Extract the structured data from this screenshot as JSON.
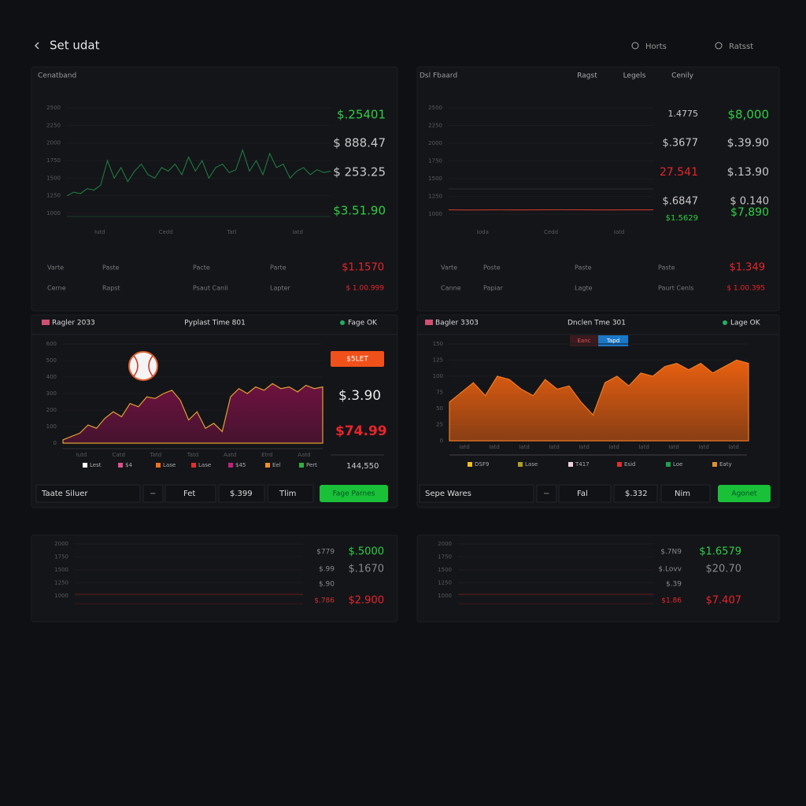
{
  "header": {
    "back": "Set udat",
    "search": "Horts",
    "reset": "Ratsst"
  },
  "panels": [
    {
      "title": "Cenatband",
      "chart": {
        "type": "line",
        "color": "#1f7a3f",
        "ylim": [
          1000,
          2500
        ],
        "yticks": [
          1000,
          1250,
          1500,
          1750,
          2000,
          2250,
          2500
        ],
        "x_labels": [
          "Iutd",
          "Cedd",
          "Tatl",
          "Iatd"
        ],
        "values": [
          1250,
          1300,
          1280,
          1350,
          1330,
          1400,
          1750,
          1500,
          1650,
          1450,
          1600,
          1700,
          1550,
          1500,
          1650,
          1600,
          1700,
          1550,
          1800,
          1600,
          1750,
          1500,
          1650,
          1700,
          1580,
          1620,
          1900,
          1600,
          1750,
          1550,
          1850,
          1650,
          1700,
          1500,
          1600,
          1650,
          1550,
          1620,
          1580,
          1600
        ]
      },
      "side": [
        "$.25401",
        "$ 888.47",
        "$ 253.25",
        "$3.51.90"
      ],
      "rows": [
        [
          "Varte",
          "Paste",
          "Pacte",
          "Parte",
          "$1.1570"
        ],
        [
          "Cerne",
          "Rapst",
          "Psaut Canli",
          "Lapter",
          "$ 1.00.999"
        ]
      ]
    },
    {
      "title": "Dsl Fbaard",
      "tabs": [
        "Ragst",
        "Legels",
        "Cenily"
      ],
      "chart": {
        "type": "line",
        "color": "#c0392b",
        "ylim": [
          1000,
          2500
        ],
        "yticks": [
          1000,
          1250,
          1500,
          1750,
          2000,
          2250,
          2500
        ],
        "x_labels": [
          "Ioda",
          "Cedd",
          "Iatd"
        ],
        "values": [
          1060,
          1058,
          1060,
          1059,
          1060,
          1061,
          1060,
          1059,
          1060,
          1060
        ]
      },
      "side": [
        "1.4775",
        "$.3677",
        "27.541",
        "$.6847",
        "$1.5629"
      ],
      "side2": [
        "$8,000",
        "$.39.90",
        "$.13.90",
        "$ 0.140",
        "$7,890"
      ],
      "rows": [
        [
          "Varte",
          "Poste",
          "Paste",
          "Paste",
          "$1.349"
        ],
        [
          "Canne",
          "Papiar",
          "Lagte",
          "Paurt Cenls",
          "$ 1.00.395"
        ]
      ]
    },
    {
      "title": "Ragler 2033",
      "subtitle": "Pyplast Time 801",
      "status": "Fage OK",
      "badge": "$5LET",
      "chart": {
        "type": "area",
        "color": "#6e1240",
        "line": "#e0a030",
        "ylim": [
          0,
          600
        ],
        "yticks": [
          0,
          100,
          200,
          300,
          400,
          500,
          600
        ],
        "x_labels": [
          "Iutd",
          "Catd",
          "Tatd",
          "Tatd",
          "Aatd",
          "Etrd",
          "Aatd"
        ],
        "values": [
          20,
          40,
          60,
          110,
          90,
          150,
          190,
          160,
          240,
          220,
          280,
          270,
          300,
          320,
          260,
          140,
          190,
          90,
          120,
          70,
          280,
          330,
          300,
          340,
          320,
          360,
          330,
          340,
          310,
          350,
          330,
          340
        ]
      },
      "side": [
        "$.3.90",
        "$74.99",
        "144,550"
      ],
      "legend": [
        {
          "name": "Lest",
          "color": "#ffffff"
        },
        {
          "name": "$4",
          "color": "#e0508a"
        },
        {
          "name": "Lase",
          "color": "#f07020"
        },
        {
          "name": "Lase",
          "color": "#e03030"
        },
        {
          "name": "$45",
          "color": "#c02080"
        },
        {
          "name": "Eel",
          "color": "#f09020"
        },
        {
          "name": "Pert",
          "color": "#30b040"
        }
      ],
      "controls": [
        "Taate Siluer",
        "Fet",
        "$.399",
        "Tlim"
      ],
      "button": "Fage Parnes"
    },
    {
      "title": "Bagler 3303",
      "subtitle": "Dnclen Tme 301",
      "status": "Lage OK",
      "toggles": [
        "Eanc",
        "Tapd"
      ],
      "chart": {
        "type": "area",
        "color": "#e86010",
        "line": "#f07a20",
        "ylim": [
          0,
          150
        ],
        "yticks": [
          0,
          25,
          50,
          75,
          100,
          125,
          150
        ],
        "x_labels": [
          "Iatd",
          "Iatd",
          "Iatd",
          "Iatd",
          "Iatd",
          "Iatd",
          "Iatd",
          "Iatd",
          "Iatd",
          "Iatd"
        ],
        "values": [
          60,
          75,
          90,
          70,
          100,
          95,
          80,
          70,
          95,
          80,
          85,
          60,
          40,
          90,
          100,
          85,
          105,
          100,
          115,
          120,
          110,
          120,
          105,
          115,
          125,
          120
        ]
      },
      "legend": [
        {
          "name": "DSF9",
          "color": "#f0c020"
        },
        {
          "name": "Lase",
          "color": "#b0a020"
        },
        {
          "name": "T417",
          "color": "#f0d0e0"
        },
        {
          "name": "Esid",
          "color": "#e03030"
        },
        {
          "name": "Loe",
          "color": "#20a050"
        },
        {
          "name": "Eaty",
          "color": "#e09030"
        }
      ],
      "controls": [
        "Sepe Wares",
        "Fal",
        "$.332",
        "Nim"
      ],
      "button": "Agonet"
    },
    {
      "chart": {
        "type": "line",
        "color": "#6a1a1a",
        "ylim": [
          1000,
          2000
        ],
        "yticks": [
          1000,
          1250,
          1500,
          1750,
          2000
        ],
        "values": [
          1030,
          1030,
          1031,
          1030,
          1030,
          1030,
          1031,
          1030
        ]
      },
      "side": [
        "$779",
        "$.99",
        "$.90",
        "$.786"
      ],
      "side2": [
        "$.5000",
        "$.1670",
        "$2.900"
      ]
    },
    {
      "chart": {
        "type": "line",
        "color": "#6a1a1a",
        "ylim": [
          1000,
          2000
        ],
        "yticks": [
          1000,
          1250,
          1500,
          1750,
          2000
        ],
        "values": [
          1030,
          1030,
          1031,
          1030,
          1030,
          1030,
          1031,
          1030
        ]
      },
      "side": [
        "$.7N9",
        "$.Lovv",
        "$.39",
        "$1.86"
      ],
      "side2": [
        "$1.6579",
        "$20.70",
        "$7.407"
      ]
    }
  ]
}
